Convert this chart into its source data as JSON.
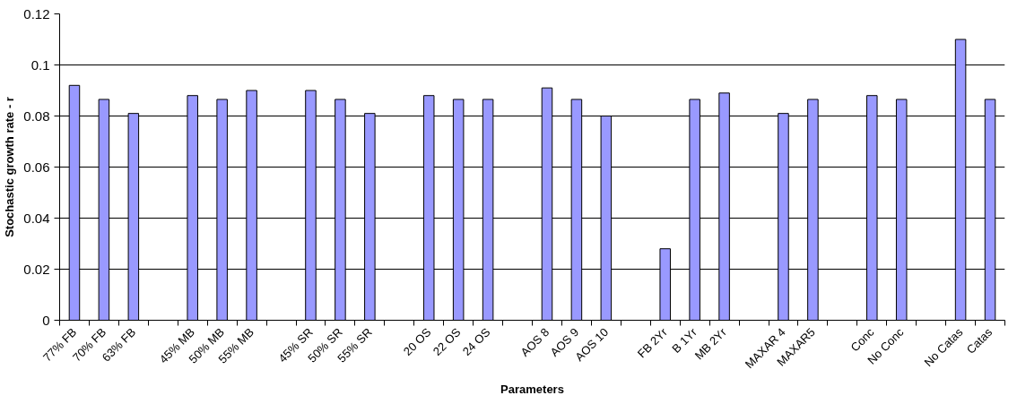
{
  "chart_data": {
    "type": "bar",
    "xlabel": "Parameters",
    "ylabel": "Stochastic growth rate - r",
    "categories": [
      "77% FB",
      "70% FB",
      "63% FB",
      null,
      "45% MB",
      "50% MB",
      "55% MB",
      null,
      "45% SR",
      "50% SR",
      "55% SR",
      null,
      "20 OS",
      "22 OS",
      "24 OS",
      null,
      "AOS 8",
      "AOS 9",
      "AOS 10",
      null,
      "FB 2Yr",
      "B 1Yr",
      "MB 2Yr",
      null,
      "MAXAR 4",
      "MAXAR5",
      null,
      "Conc",
      "No Conc",
      null,
      "No Catas",
      "Catas"
    ],
    "values": [
      0.092,
      0.0865,
      0.081,
      null,
      0.088,
      0.0865,
      0.09,
      null,
      0.09,
      0.0865,
      0.081,
      null,
      0.088,
      0.0865,
      0.0865,
      null,
      0.091,
      0.0865,
      0.08,
      null,
      0.028,
      0.0865,
      0.089,
      null,
      0.081,
      0.0865,
      null,
      0.088,
      0.0865,
      null,
      0.11,
      0.0865
    ],
    "color": "#9999ff",
    "ylim": [
      0,
      0.12
    ],
    "yticks": [
      0,
      0.02,
      0.04,
      0.06,
      0.08,
      0.1,
      0.12
    ],
    "grid": "y"
  }
}
